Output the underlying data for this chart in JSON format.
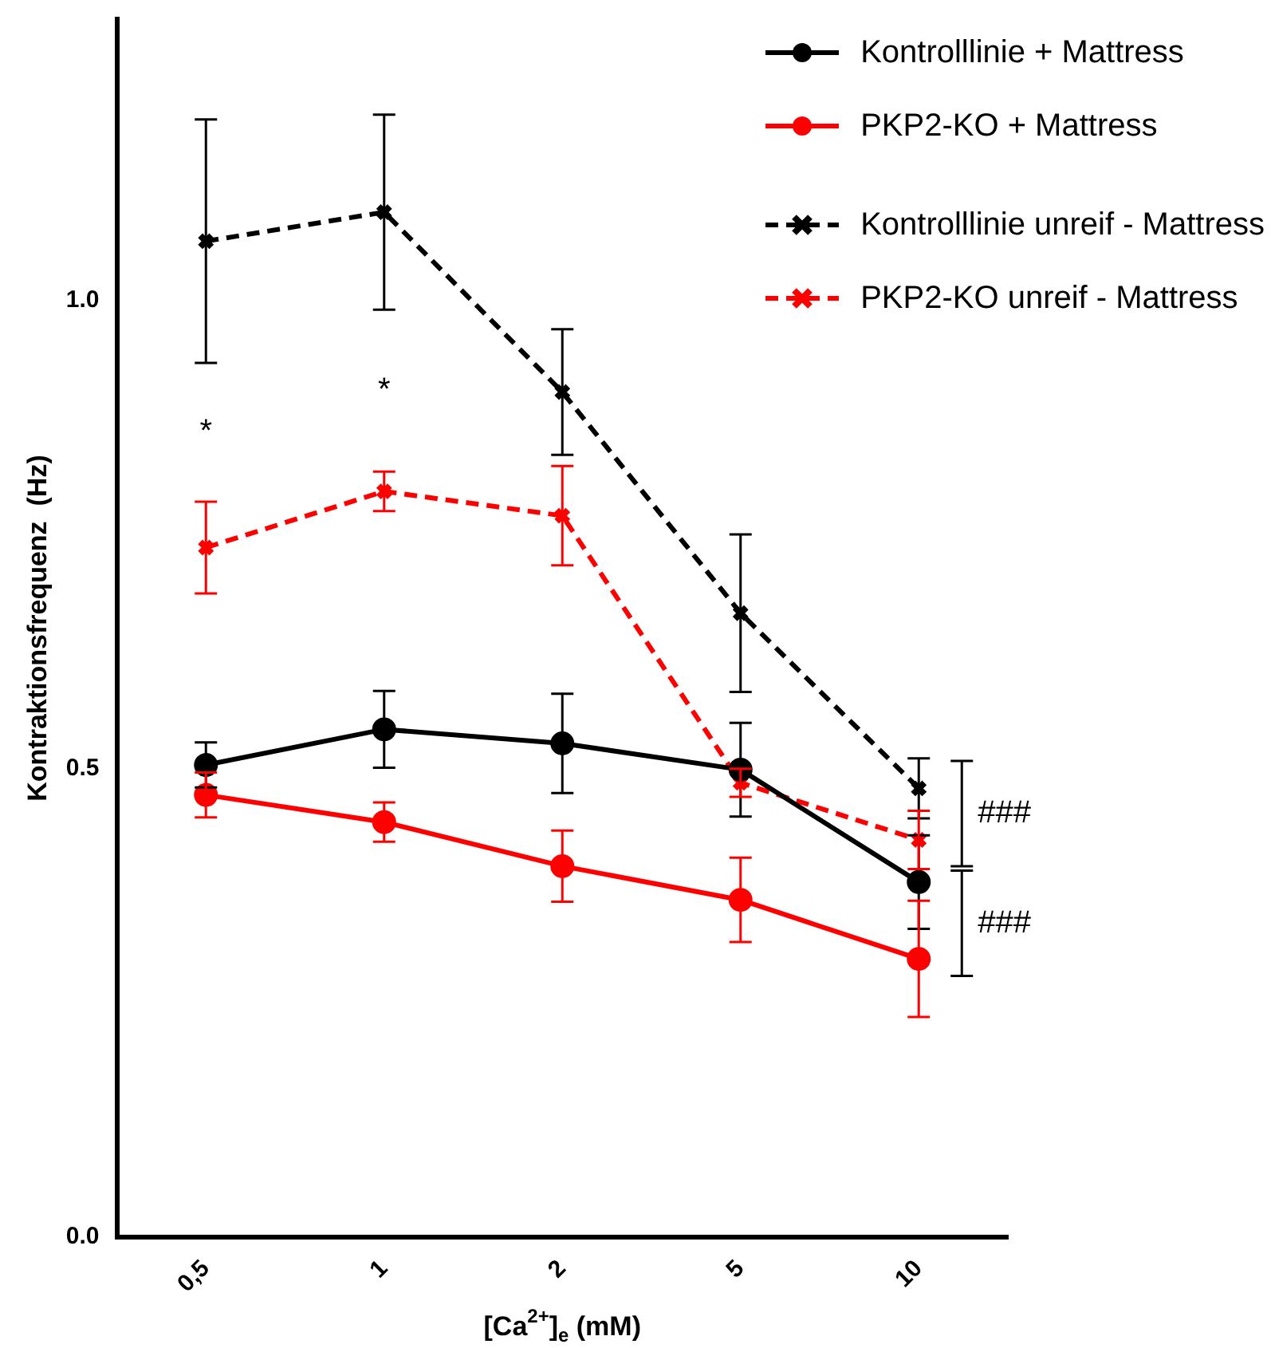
{
  "chart_data": {
    "type": "line",
    "xlabel": "[Ca$^{2+}$]$_{e}$ (mM)",
    "ylabel": "Kontraktionsfrequenz  (Hz)",
    "categories": [
      "0,5",
      "1",
      "2",
      "5",
      "10"
    ],
    "ylim": [
      0,
      1.3
    ],
    "yticks": [
      {
        "value": 0,
        "label": "0.0"
      },
      {
        "value": 0.5,
        "label": "0.5"
      },
      {
        "value": 1,
        "label": "1.0"
      }
    ],
    "grid": false,
    "legend": "top right",
    "series": [
      {
        "name": "Kontrolllinie + Mattress",
        "color": "#000000",
        "marker": "circle",
        "line_style": "solid",
        "values": [
          0.504,
          0.542,
          0.527,
          0.499,
          0.379
        ],
        "errors": [
          0.024,
          0.041,
          0.053,
          0.05,
          0.05
        ]
      },
      {
        "name": "PKP2-KO + Mattress",
        "color": "#ff0000",
        "marker": "circle",
        "line_style": "solid",
        "values": [
          0.472,
          0.443,
          0.396,
          0.36,
          0.297
        ],
        "errors": [
          0.024,
          0.021,
          0.038,
          0.045,
          0.062
        ]
      },
      {
        "name": "Kontrolllinie unreif - Mattress",
        "color": "#000000",
        "marker": "cross",
        "line_style": "dashed",
        "values": [
          1.063,
          1.094,
          0.902,
          0.666,
          0.479
        ],
        "errors": [
          0.13,
          0.104,
          0.067,
          0.084,
          0.032
        ]
      },
      {
        "name": "PKP2-KO unreif - Mattress",
        "color": "#ff0000",
        "marker": "cross",
        "line_style": "dashed",
        "values": [
          0.736,
          0.796,
          0.77,
          0.485,
          0.424
        ],
        "errors": [
          0.049,
          0.021,
          0.053,
          0.015,
          0.031
        ]
      }
    ],
    "annotations": [
      "*",
      "*",
      {
        "text": "###",
        "x": "10",
        "y": 0.452
      },
      {
        "text": "###",
        "x": "10",
        "y": 0.335
      }
    ]
  }
}
